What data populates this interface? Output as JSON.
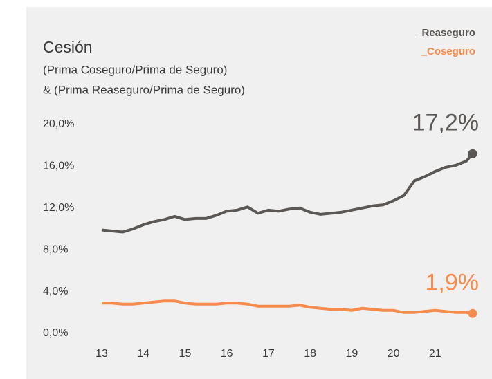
{
  "chart_data": {
    "type": "line",
    "title": "Cesión",
    "subtitle": [
      "(Prima Coseguro/Prima de Seguro)",
      "& (Prima Reaseguro/Prima de Seguro)"
    ],
    "x": [
      13,
      13.25,
      13.5,
      13.75,
      14,
      14.25,
      14.5,
      14.75,
      15,
      15.25,
      15.5,
      15.75,
      16,
      16.25,
      16.5,
      16.75,
      17,
      17.25,
      17.5,
      17.75,
      18,
      18.25,
      18.5,
      18.75,
      19,
      19.25,
      19.5,
      19.75,
      20,
      20.25,
      20.5,
      20.75,
      21,
      21.25,
      21.5,
      21.75,
      21.9
    ],
    "series": [
      {
        "name": "_Reaseguro",
        "color": "#5b5754",
        "end_label": "17,2%",
        "values": [
          9.9,
          9.8,
          9.7,
          10.0,
          10.4,
          10.7,
          10.9,
          11.2,
          10.9,
          11.0,
          11.0,
          11.3,
          11.7,
          11.8,
          12.1,
          11.5,
          11.8,
          11.7,
          11.9,
          12.0,
          11.6,
          11.4,
          11.5,
          11.6,
          11.8,
          12.0,
          12.2,
          12.3,
          12.7,
          13.2,
          14.6,
          15.0,
          15.5,
          15.9,
          16.1,
          16.5,
          17.2
        ]
      },
      {
        "name": "_Coseguro",
        "color": "#f58b4c",
        "end_label": "1,9%",
        "values": [
          2.9,
          2.9,
          2.8,
          2.8,
          2.9,
          3.0,
          3.1,
          3.1,
          2.9,
          2.8,
          2.8,
          2.8,
          2.9,
          2.9,
          2.8,
          2.6,
          2.6,
          2.6,
          2.6,
          2.7,
          2.5,
          2.4,
          2.3,
          2.3,
          2.2,
          2.4,
          2.3,
          2.2,
          2.2,
          2.0,
          2.0,
          2.1,
          2.2,
          2.1,
          2.0,
          2.0,
          1.9
        ]
      }
    ],
    "xlim": [
      13,
      21.9
    ],
    "xticks": [
      13,
      14,
      15,
      16,
      17,
      18,
      19,
      20,
      21
    ],
    "ylim": [
      0,
      20
    ],
    "yticks": [
      {
        "value": 0,
        "label": "0,0%"
      },
      {
        "value": 4,
        "label": "4,0%"
      },
      {
        "value": 8,
        "label": "8,0%"
      },
      {
        "value": 12,
        "label": "12,0%"
      },
      {
        "value": 16,
        "label": "16,0%"
      },
      {
        "value": 20,
        "label": "20,0%"
      }
    ],
    "grid": false,
    "legend": "top-right"
  }
}
